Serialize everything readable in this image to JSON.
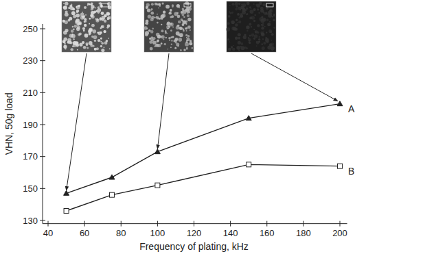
{
  "chart_data": {
    "type": "line",
    "x_label": "Frequency of plating, kHz",
    "y_label": "VHN, 50g load",
    "x": [
      50,
      75,
      100,
      150,
      200
    ],
    "series": [
      {
        "name": "A",
        "color": "#222222",
        "marker": "triangle",
        "values": [
          147,
          157,
          173,
          194,
          203
        ]
      },
      {
        "name": "B",
        "color": "#222222",
        "marker": "square",
        "values": [
          136,
          146,
          152,
          165,
          164
        ]
      }
    ],
    "xlim": [
      37,
      204
    ],
    "xticks": [
      40,
      60,
      80,
      100,
      120,
      140,
      160,
      180,
      200
    ],
    "ylim": [
      128,
      253
    ],
    "yticks": [
      130,
      150,
      170,
      190,
      210,
      230,
      250
    ],
    "grid": false
  }
}
